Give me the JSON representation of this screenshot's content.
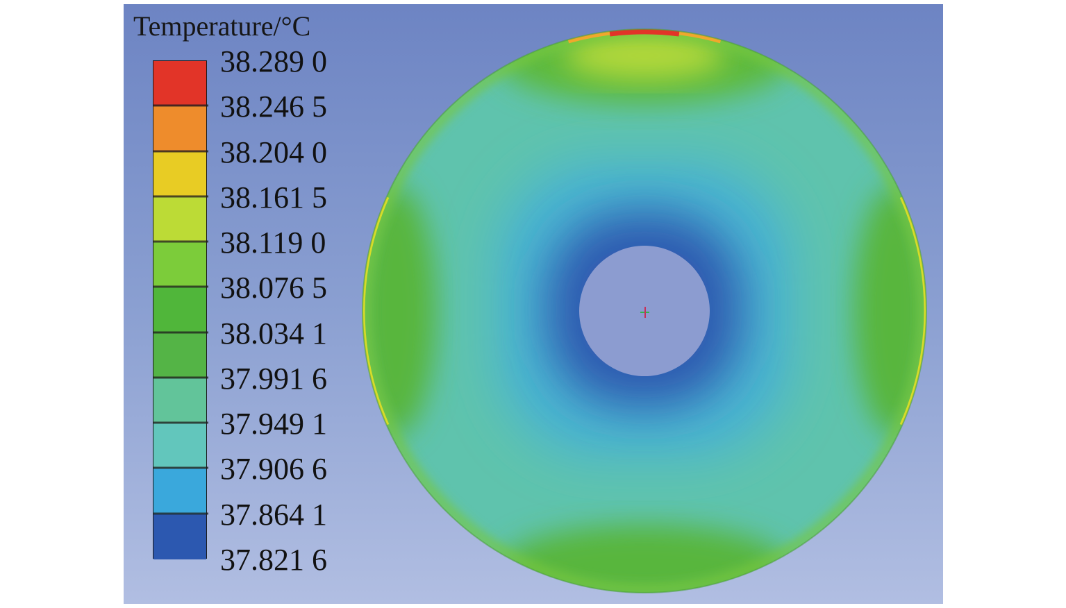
{
  "legend": {
    "title": "Temperature/°C",
    "levels": [
      "38.289 0",
      "38.246 5",
      "38.204 0",
      "38.161 5",
      "38.119 0",
      "38.076 5",
      "38.034 1",
      "37.991 6",
      "37.949 1",
      "37.906 6",
      "37.864 1",
      "37.821 6"
    ],
    "band_colors": [
      "#e23428",
      "#ee8c2c",
      "#e8cc24",
      "#bcdb36",
      "#7ccc3a",
      "#50b63a",
      "#54b446",
      "#62c49a",
      "#62c6bc",
      "#3aa8dc",
      "#2c58b0"
    ]
  },
  "model": {
    "inner_hole_color": "#8c9cd0",
    "center_marker": "origin-triad-icon"
  }
}
